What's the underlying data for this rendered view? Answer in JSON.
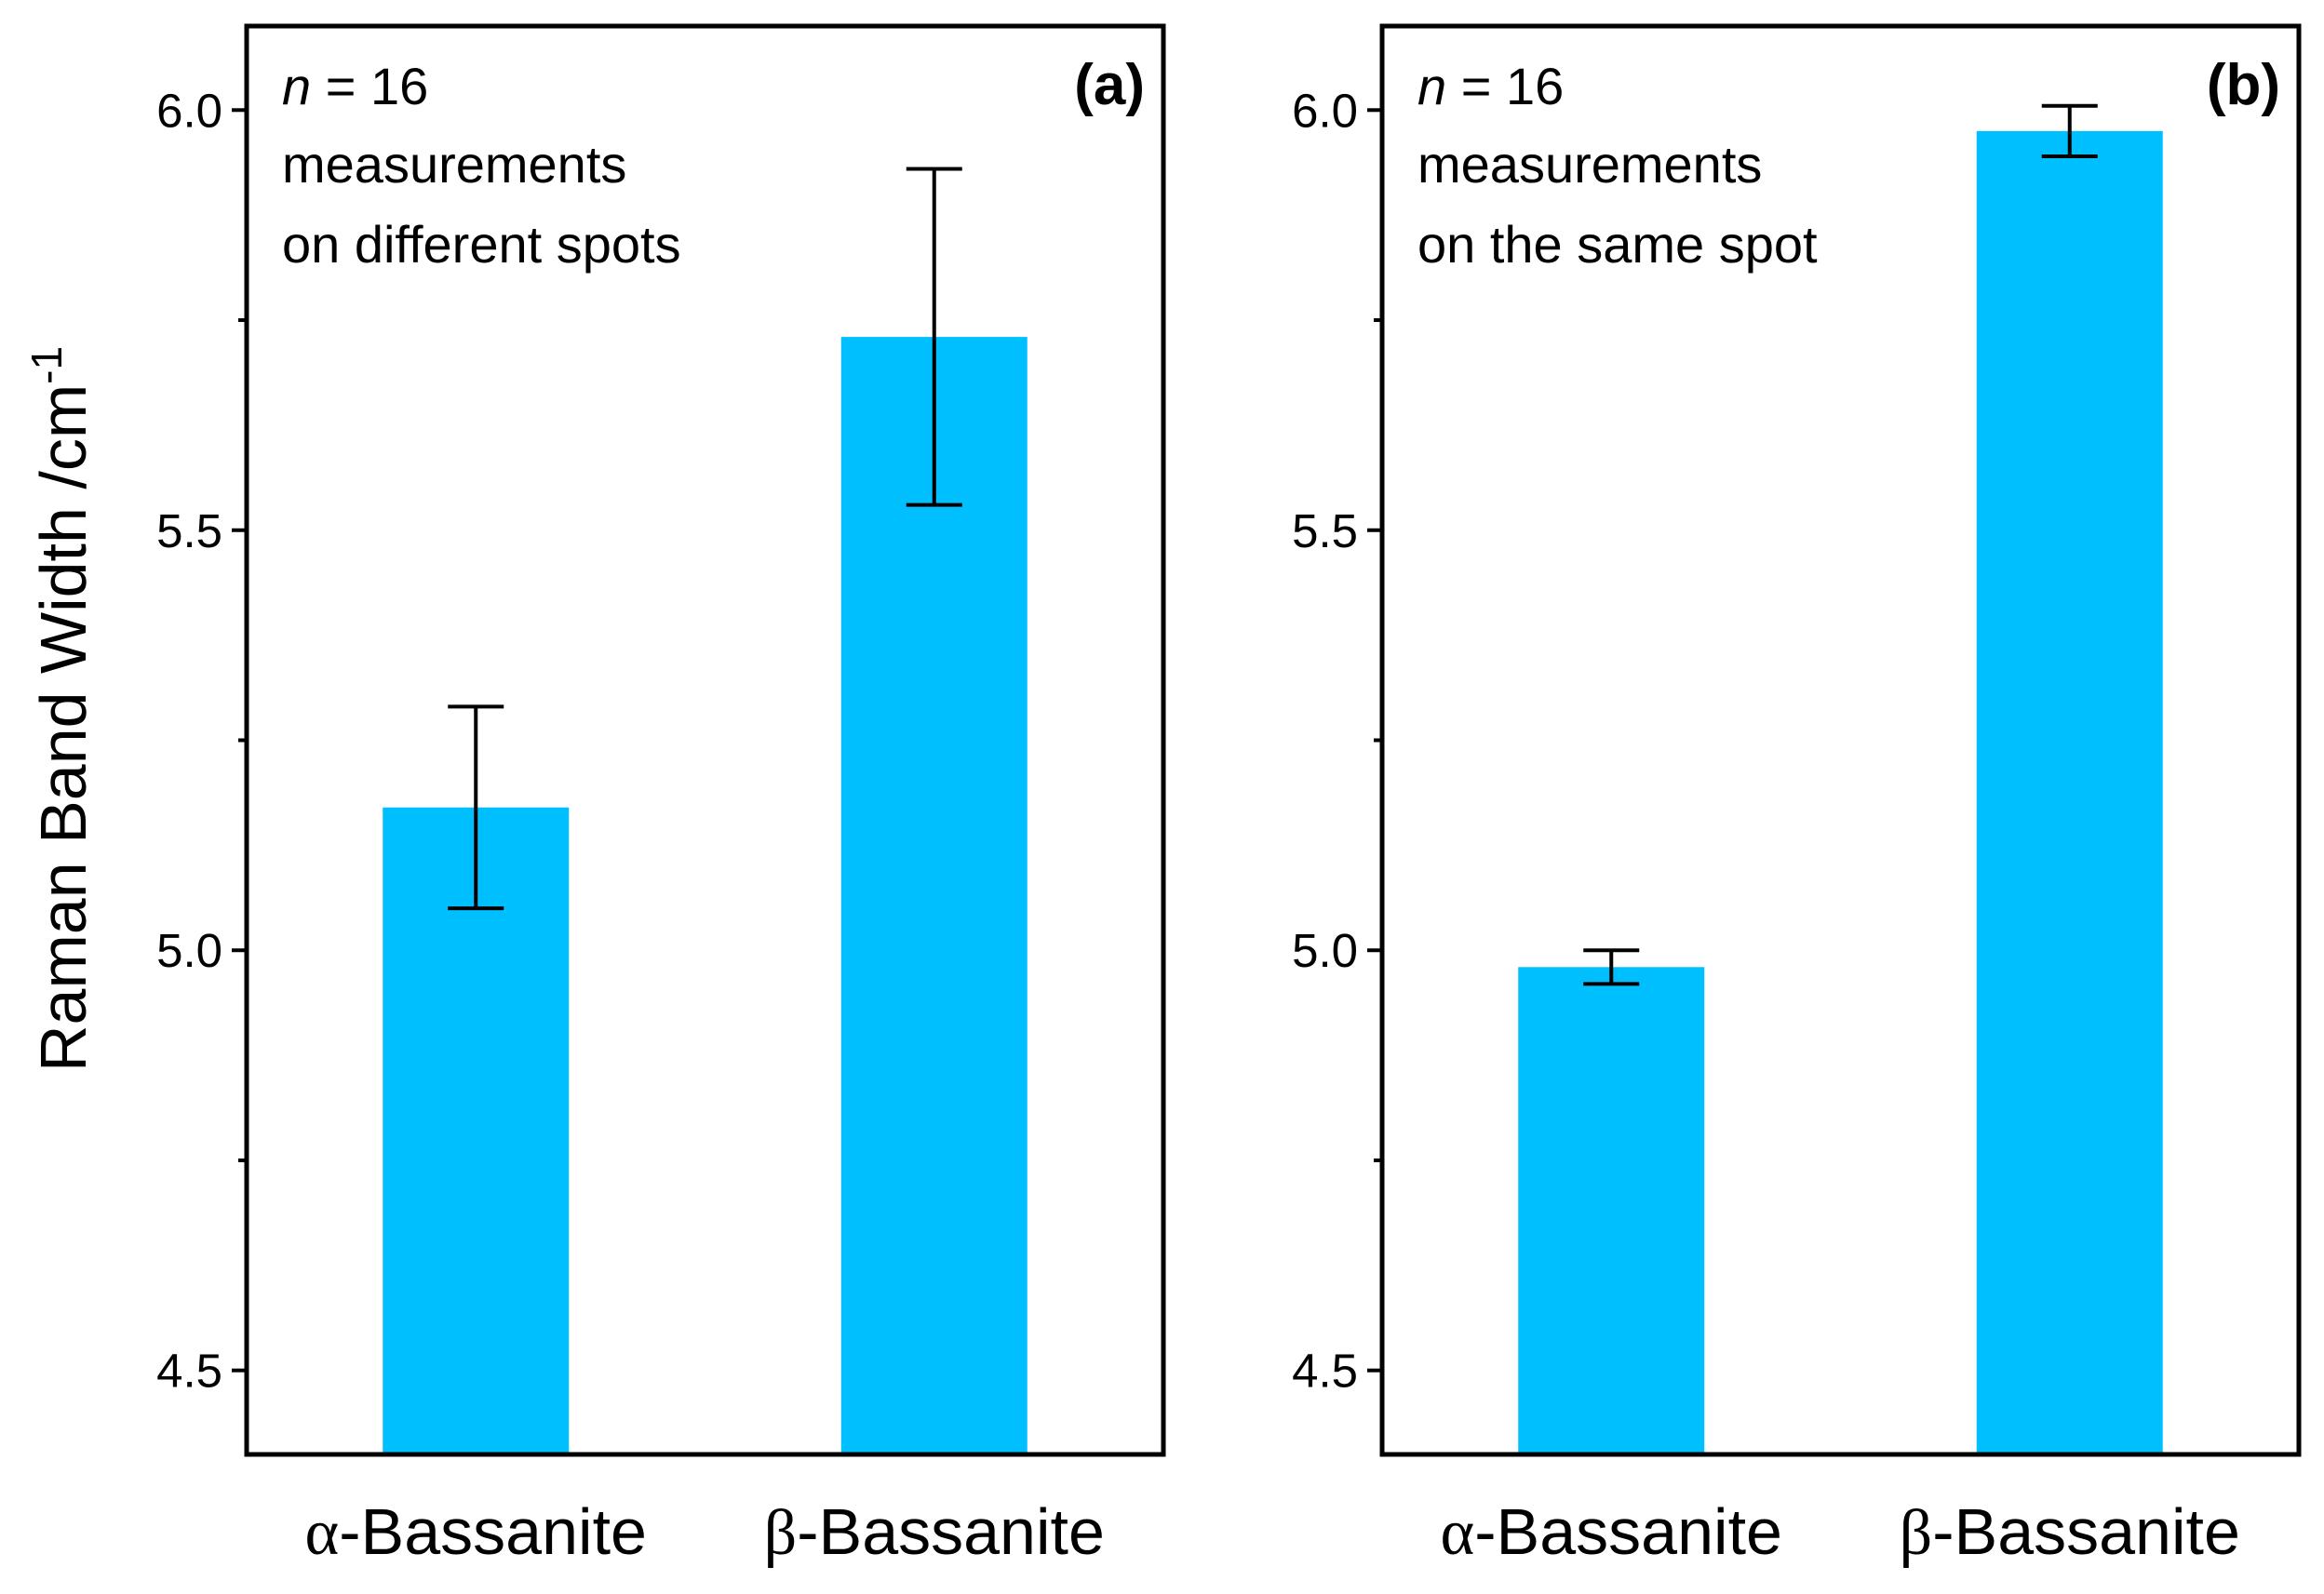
{
  "chart_data": [
    {
      "type": "bar",
      "panel_label": "(a)",
      "annotation": {
        "n_italic": "n",
        "n_rest": " = 16",
        "line2": "measurements",
        "line3": "on different spots"
      },
      "categories": [
        {
          "greek": "α",
          "rest": "-Bassanite"
        },
        {
          "greek": "β",
          "rest": "-Bassanite"
        }
      ],
      "values": [
        5.17,
        5.73
      ],
      "errors": [
        0.12,
        0.2
      ],
      "ylim": [
        4.4,
        6.1
      ],
      "yticks": [
        "4.5",
        "5.0",
        "5.5",
        "6.0"
      ],
      "bar_color": "#00BFFF"
    },
    {
      "type": "bar",
      "panel_label": "(b)",
      "annotation": {
        "n_italic": "n",
        "n_rest": " = 16",
        "line2": "measurements",
        "line3": "on the same spot"
      },
      "categories": [
        {
          "greek": "α",
          "rest": "-Bassanite"
        },
        {
          "greek": "β",
          "rest": "-Bassanite"
        }
      ],
      "values": [
        4.98,
        5.975
      ],
      "errors": [
        0.02,
        0.03
      ],
      "ylim": [
        4.4,
        6.1
      ],
      "yticks": [
        "4.5",
        "5.0",
        "5.5",
        "6.0"
      ],
      "bar_color": "#00BFFF"
    }
  ],
  "ylabel": {
    "text": "Raman Band Width /cm",
    "superscript": "-1"
  }
}
